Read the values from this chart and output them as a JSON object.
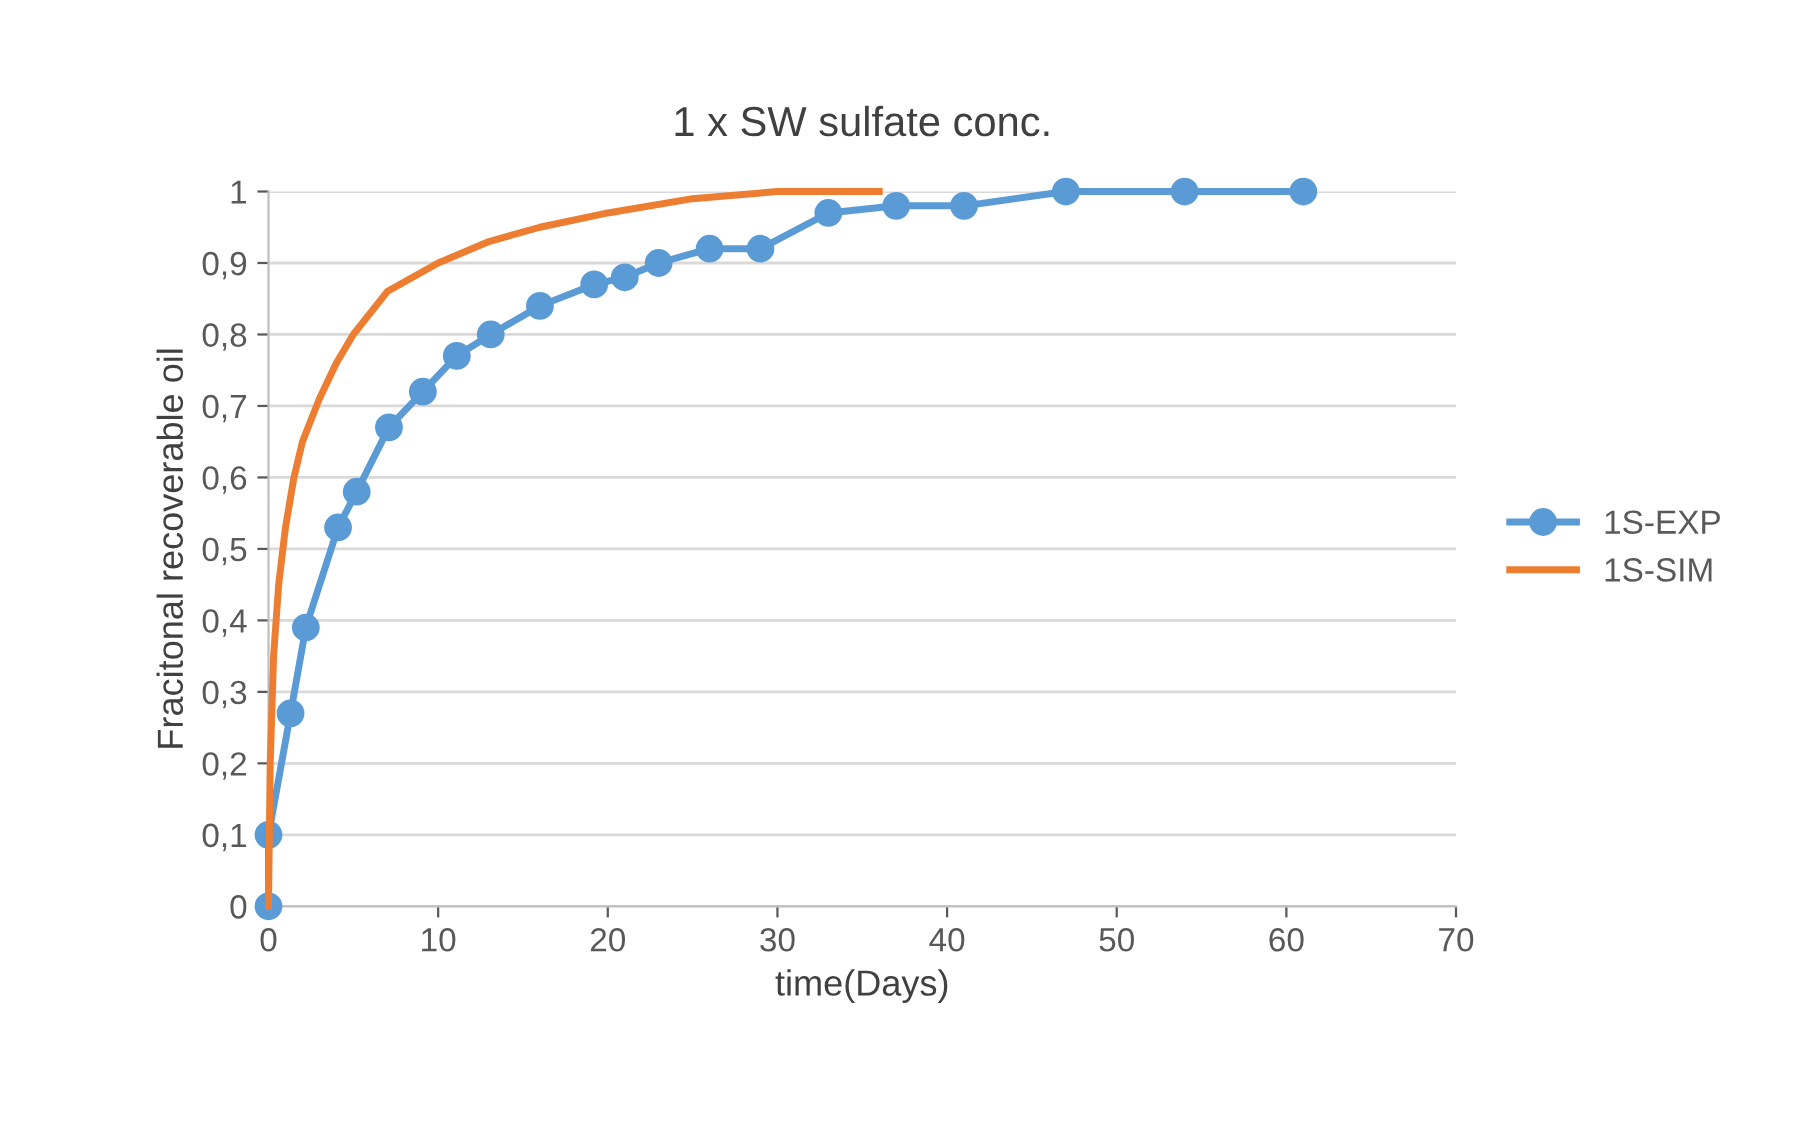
{
  "chart_data": {
    "type": "line",
    "title": "1 x SW sulfate conc.",
    "xlabel": "time(Days)",
    "ylabel": "Fracitonal recoverable oil",
    "xlim": [
      0,
      70
    ],
    "xticks": [
      0,
      10,
      20,
      30,
      40,
      50,
      60,
      70
    ],
    "ylim": [
      0,
      1
    ],
    "yticks": [
      0,
      {
        "value": 0.1,
        "label": "0,1"
      },
      {
        "value": 0.2,
        "label": "0,2"
      },
      {
        "value": 0.3,
        "label": "0,3"
      },
      {
        "value": 0.4,
        "label": "0,4"
      },
      {
        "value": 0.5,
        "label": "0,5"
      },
      {
        "value": 0.6,
        "label": "0,6"
      },
      {
        "value": 0.7,
        "label": "0,7"
      },
      {
        "value": 0.8,
        "label": "0,8"
      },
      {
        "value": 0.9,
        "label": "0,9"
      },
      1
    ],
    "grid": "y",
    "legend": "right",
    "series": [
      {
        "name": "1S-EXP",
        "color": "#5b9bd5",
        "marker": "circle",
        "x": [
          0,
          0,
          1.3,
          2.2,
          4.1,
          5.2,
          7.1,
          9.1,
          11.1,
          13.1,
          16,
          19.2,
          21,
          23,
          26,
          29,
          33,
          37,
          41,
          47,
          54,
          61
        ],
        "values": [
          0,
          0.1,
          0.27,
          0.39,
          0.53,
          0.58,
          0.67,
          0.72,
          0.77,
          0.8,
          0.84,
          0.87,
          0.88,
          0.9,
          0.92,
          0.92,
          0.97,
          0.98,
          0.98,
          1.0,
          1.0,
          1.0
        ]
      },
      {
        "name": "1S-SIM",
        "color": "#ed7d31",
        "marker": "none",
        "x": [
          0,
          0.1,
          0.3,
          0.6,
          1,
          1.5,
          2,
          3,
          4,
          5,
          7,
          10,
          13,
          16,
          20,
          25,
          30,
          36
        ],
        "values": [
          0,
          0.2,
          0.35,
          0.45,
          0.53,
          0.6,
          0.65,
          0.71,
          0.76,
          0.8,
          0.86,
          0.9,
          0.93,
          0.95,
          0.97,
          0.99,
          1.0,
          1.0
        ]
      }
    ]
  }
}
